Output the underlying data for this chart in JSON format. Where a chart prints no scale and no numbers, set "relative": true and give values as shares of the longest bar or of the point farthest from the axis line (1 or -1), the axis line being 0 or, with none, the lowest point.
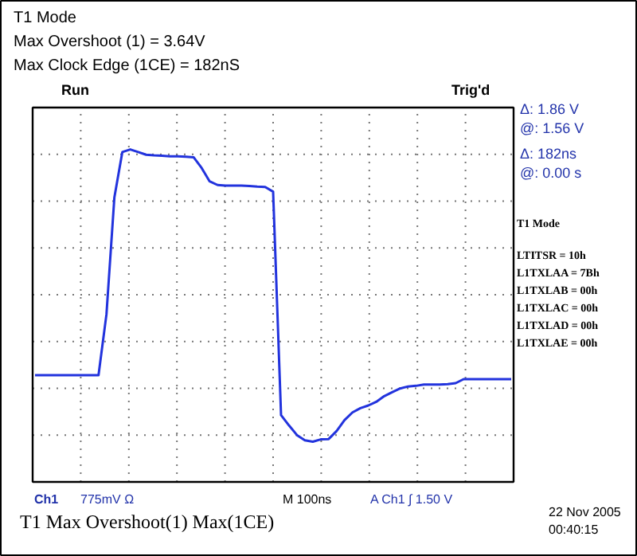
{
  "chart_data": {
    "type": "line",
    "relative": true,
    "grid": true,
    "tick_labels": false,
    "title": "T1 Mode",
    "subtitle": "Max Overshoot (1) = 3.64V\nMax Clock Edge (1CE) = 182nS",
    "categories": [
      null,
      null,
      null,
      null,
      null,
      null,
      null,
      null,
      null,
      null,
      null,
      null,
      null,
      null,
      null,
      null,
      null,
      null,
      null,
      null,
      null,
      null,
      null,
      null,
      null,
      null,
      null,
      null,
      null,
      null,
      null,
      null,
      null,
      null,
      null,
      null,
      null,
      null,
      null,
      null,
      null,
      null,
      null,
      null,
      null,
      null,
      null,
      null,
      null,
      null,
      null,
      null,
      null,
      null,
      null,
      null,
      null,
      null,
      null,
      null,
      null
    ],
    "series": [
      {
        "color": "#2233dd",
        "values": [
          0.321,
          0.321,
          0.321,
          0.321,
          0.321,
          0.321,
          0.321,
          0.321,
          0.321,
          0.504,
          0.856,
          0.992,
          1,
          0.992,
          0.984,
          0.982,
          0.981,
          0.979,
          0.979,
          0.978,
          0.976,
          0.944,
          0.904,
          0.893,
          0.891,
          0.891,
          0.891,
          0.89,
          0.888,
          0.887,
          0.873,
          0.201,
          0.17,
          0.141,
          0.125,
          0.121,
          0.128,
          0.129,
          0.153,
          0.186,
          0.209,
          0.222,
          0.23,
          0.241,
          0.258,
          0.27,
          0.281,
          0.287,
          0.289,
          0.293,
          0.293,
          0.293,
          0.294,
          0.297,
          0.309,
          0.309,
          0.309,
          0.309,
          0.309,
          0.309,
          0.309
        ]
      }
    ],
    "annotations": [
      "Run",
      "Trig'd",
      "Δ:  1.86 V",
      "@:  1.56 V",
      "Δ:  182ns",
      "@:  0.00 s",
      "T1 Mode",
      "LTITSR = 10h",
      "L1TXLAA = 7Bh",
      "L1TXLAB = 00h",
      "L1TXLAC = 00h",
      "L1TXLAD = 00h",
      "L1TXLAE = 00h",
      "Ch1",
      "775mV Ω",
      "M 100ns",
      "A  Ch1  ∫   1.50 V",
      "T1 Max Overshoot(1)  Max(1CE)",
      "22 Nov 2005",
      "00:40:15"
    ]
  }
}
